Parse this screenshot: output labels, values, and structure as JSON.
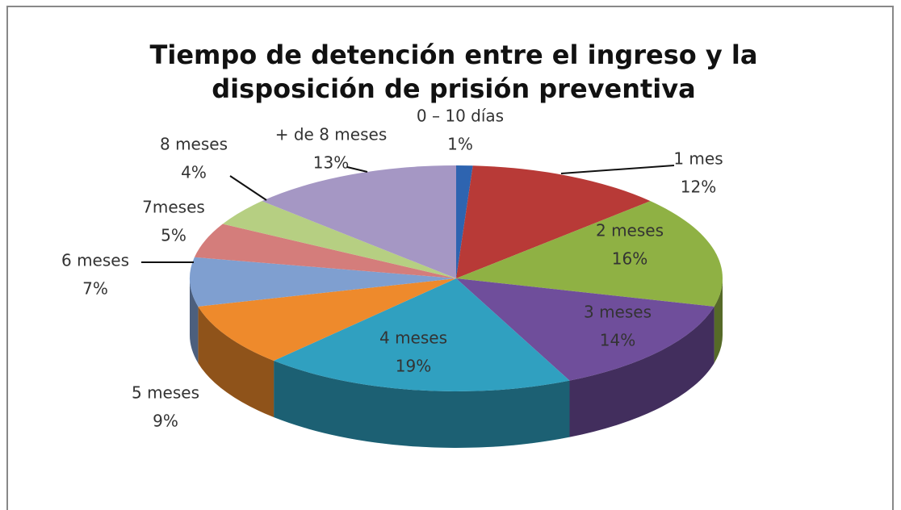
{
  "chart_data": {
    "type": "pie3d",
    "title": [
      "Tiempo de detención entre el ingreso y la",
      "disposición de prisión preventiva"
    ],
    "categories": [
      "0 – 10 días",
      "1 mes",
      "2 meses",
      "3 meses",
      "4 meses",
      "5 meses",
      "6 meses",
      "7meses",
      "8 meses",
      "+ de 8 meses"
    ],
    "values": [
      1,
      12,
      16,
      14,
      19,
      9,
      7,
      5,
      4,
      13
    ],
    "value_labels": [
      "1%",
      "12%",
      "16%",
      "14%",
      "19%",
      "9%",
      "7%",
      "5%",
      "4%",
      "13%"
    ],
    "colors": [
      "#2e64b0",
      "#b83a37",
      "#8fb144",
      "#6f4e9b",
      "#30a0c0",
      "#ee8a2c",
      "#7f9fd0",
      "#d47d7b",
      "#b6cf82",
      "#a597c4"
    ]
  }
}
